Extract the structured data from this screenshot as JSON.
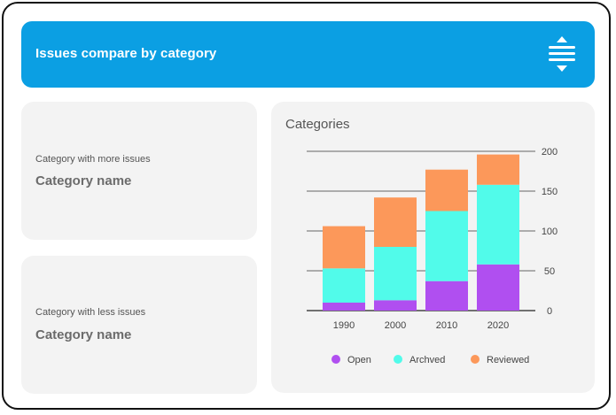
{
  "header": {
    "title": "Issues compare by category",
    "sort_icon": "sort-vertical-icon"
  },
  "cards": {
    "more": {
      "caption": "Category with more issues",
      "value": "Category name"
    },
    "less": {
      "caption": "Category with less issues",
      "value": "Category name"
    }
  },
  "colors": {
    "header_bg": "#0b9fe3",
    "open": "#b04ff0",
    "archived": "#51fbea",
    "reviewed": "#fc985a",
    "card_bg": "#f3f3f3"
  },
  "chart_data": {
    "type": "bar",
    "stacked": true,
    "title": "Categories",
    "categories": [
      "1990",
      "2000",
      "2010",
      "2020"
    ],
    "series": [
      {
        "name": "Open",
        "color": "#b04ff0",
        "values": [
          10,
          13,
          37,
          58
        ]
      },
      {
        "name": "Archved",
        "color": "#51fbea",
        "values": [
          43,
          67,
          88,
          100
        ]
      },
      {
        "name": "Reviewed",
        "color": "#fc985a",
        "values": [
          53,
          62,
          52,
          38
        ]
      }
    ],
    "y_ticks": [
      0,
      50,
      100,
      150,
      200
    ],
    "ylim": [
      0,
      200
    ],
    "y_axis_side": "right",
    "grid": true,
    "legend_position": "bottom"
  }
}
